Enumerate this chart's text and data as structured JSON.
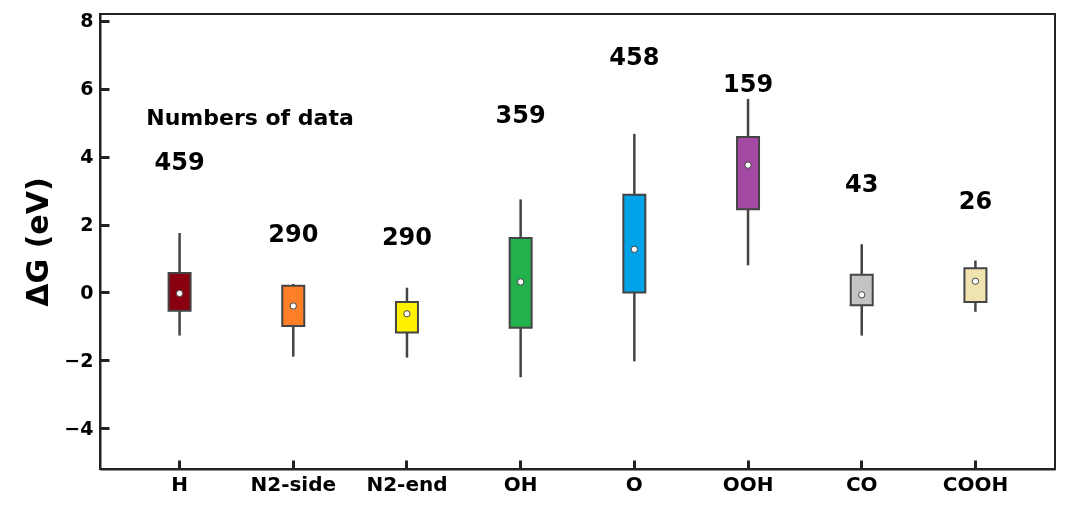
{
  "chart_data": {
    "type": "box",
    "ylabel": "ΔG (eV)",
    "categories": [
      "H",
      "N2-side",
      "N2-end",
      "OH",
      "O",
      "OOH",
      "CO",
      "COOH"
    ],
    "colors": [
      "#8b0010",
      "#ff7f27",
      "#fff200",
      "#22b14c",
      "#00a2e8",
      "#a349a4",
      "#c3c3c3",
      "#efe4b0"
    ],
    "boxes": [
      {
        "low": -1.27,
        "q1": -0.54,
        "median": -0.03,
        "q3": 0.57,
        "high": 1.75
      },
      {
        "low": -1.89,
        "q1": -0.99,
        "median": -0.4,
        "q3": 0.2,
        "high": 0.25
      },
      {
        "low": -1.92,
        "q1": -1.18,
        "median": -0.63,
        "q3": -0.28,
        "high": 0.14
      },
      {
        "low": -2.5,
        "q1": -1.04,
        "median": 0.31,
        "q3": 1.6,
        "high": 2.74
      },
      {
        "low": -2.03,
        "q1": 0,
        "median": 1.27,
        "q3": 2.88,
        "high": 4.67
      },
      {
        "low": 0.8,
        "q1": 2.45,
        "median": 3.75,
        "q3": 4.58,
        "high": 5.7
      },
      {
        "low": -1.27,
        "q1": -0.38,
        "median": -0.07,
        "q3": 0.52,
        "high": 1.42
      },
      {
        "low": -0.57,
        "q1": -0.28,
        "median": 0.33,
        "q3": 0.71,
        "high": 0.94
      }
    ],
    "ylim": [
      -5.2,
      8.2
    ],
    "yticks": [
      -4,
      -2,
      0,
      2,
      4,
      6,
      8
    ],
    "annotations": [
      "Numbers of data",
      "459",
      "290",
      "290",
      "359",
      "458",
      "159",
      "43",
      "26"
    ]
  }
}
